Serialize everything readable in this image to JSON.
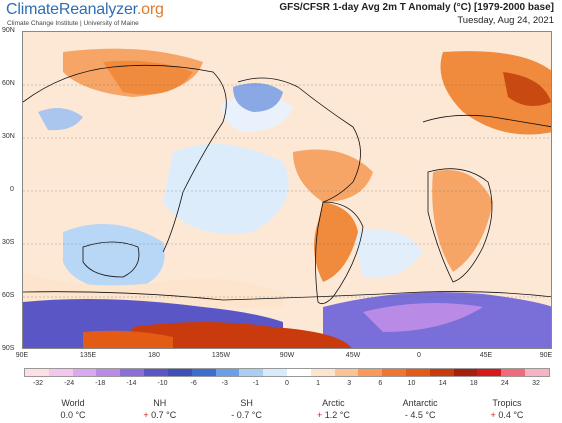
{
  "header": {
    "logo_part1": "Climate",
    "logo_part2": "Reanalyzer",
    "logo_part3": ".org",
    "logo_sub": "Climate Change Institute | University of Maine",
    "title": "GFS/CFSR 1-day Avg 2m T Anomaly (°C) [1979-2000 base]",
    "date": "Tuesday, Aug 24, 2021"
  },
  "map": {
    "lat_labels": [
      "90N",
      "60N",
      "30N",
      "0",
      "30S",
      "60S",
      "90S"
    ],
    "lon_labels": [
      "90E",
      "135E",
      "180",
      "135W",
      "90W",
      "45W",
      "0",
      "45E",
      "90E"
    ]
  },
  "colorbar": {
    "ticks": [
      "-32",
      "-24",
      "-18",
      "-14",
      "-10",
      "-6",
      "-3",
      "-1",
      "0",
      "1",
      "3",
      "6",
      "10",
      "14",
      "18",
      "24",
      "32"
    ],
    "colors": [
      "#fde0e6",
      "#f4c6ee",
      "#d9a8ee",
      "#b98be6",
      "#8a6fd8",
      "#5b56c6",
      "#3f50b8",
      "#3a6fd0",
      "#6a9ee6",
      "#a9cdf3",
      "#d8ebfb",
      "#ffffff",
      "#fde4cc",
      "#fbc393",
      "#f79a5a",
      "#f07530",
      "#e35b14",
      "#c93a0c",
      "#a8200a",
      "#d81818",
      "#f06a7a",
      "#f7b3c2"
    ]
  },
  "stats": [
    {
      "label": "World",
      "sign": "",
      "value": "0.0 °C"
    },
    {
      "label": "NH",
      "sign": "+",
      "value": "0.7 °C"
    },
    {
      "label": "SH",
      "sign": "-",
      "value": "0.7 °C"
    },
    {
      "label": "Arctic",
      "sign": "+",
      "value": "1.2 °C"
    },
    {
      "label": "Antarctic",
      "sign": "-",
      "value": "4.5 °C"
    },
    {
      "label": "Tropics",
      "sign": "+",
      "value": "0.4 °C"
    }
  ]
}
